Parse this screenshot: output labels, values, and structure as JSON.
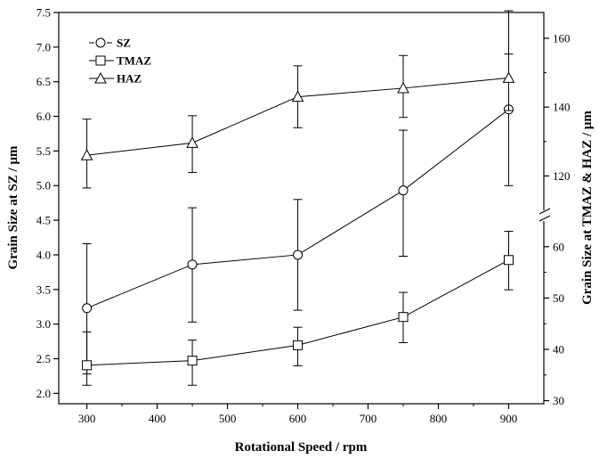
{
  "chart_data": {
    "type": "line",
    "xlabel": "Rotational Speed / rpm",
    "ylabel_left": "Grain Size at SZ / μm",
    "ylabel_right": "Grain Size at TMAZ & HAZ / μm",
    "x": [
      300,
      450,
      600,
      750,
      900
    ],
    "xlim": [
      260,
      950
    ],
    "x_ticks": [
      300,
      400,
      500,
      600,
      700,
      800,
      900
    ],
    "ylim_left": [
      1.85,
      7.5
    ],
    "y_ticks_left": [
      2.0,
      2.5,
      3.0,
      3.5,
      4.0,
      4.5,
      5.0,
      5.5,
      6.0,
      6.5,
      7.0,
      7.5
    ],
    "y_ticks_right": [
      30,
      40,
      50,
      60,
      120,
      140,
      160
    ],
    "right_axis_break": true,
    "grid": false,
    "legend_position": "top-left",
    "series": [
      {
        "name": "SZ",
        "axis": "left",
        "marker": "circle",
        "y": [
          3.23,
          3.86,
          4.0,
          4.93,
          6.1
        ],
        "err_low": [
          2.28,
          3.03,
          3.2,
          3.98,
          5.0
        ],
        "err_high": [
          4.16,
          4.68,
          4.8,
          5.8,
          6.9
        ]
      },
      {
        "name": "TMAZ",
        "axis": "right_lower",
        "marker": "square",
        "y": [
          36.9,
          37.8,
          40.8,
          46.3,
          57.4
        ],
        "err_low": [
          33.0,
          33.0,
          36.8,
          41.3,
          51.6
        ],
        "err_high": [
          43.4,
          41.8,
          44.3,
          51.1,
          63.0
        ]
      },
      {
        "name": "HAZ",
        "axis": "right_upper",
        "marker": "triangle",
        "y": [
          126.0,
          129.6,
          143.0,
          145.5,
          148.5
        ],
        "err_low": [
          116.5,
          121.0,
          134.0,
          137.0,
          139.0
        ],
        "err_high": [
          136.5,
          137.5,
          152.0,
          155.0,
          168.0
        ]
      }
    ]
  }
}
